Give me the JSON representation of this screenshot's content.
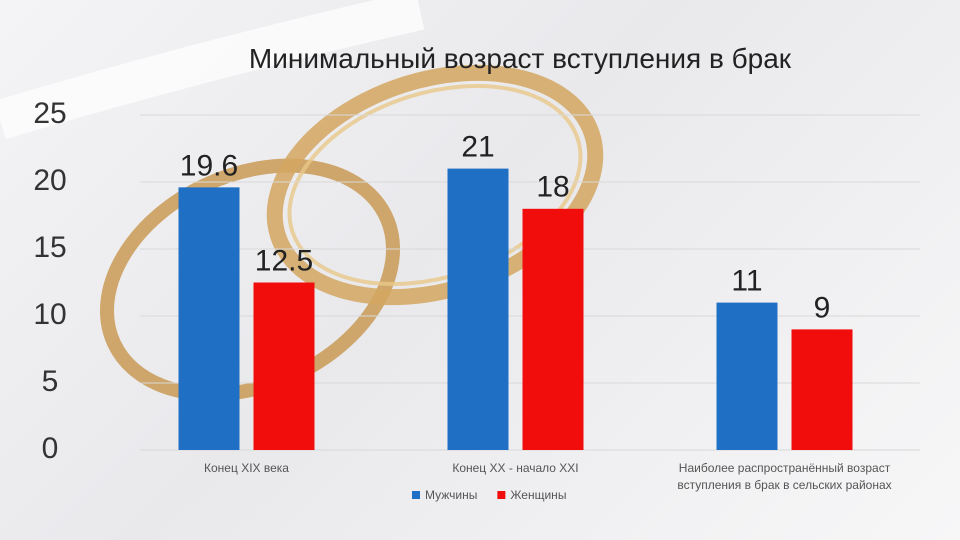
{
  "chart_data": {
    "type": "bar",
    "title": "Минимальный возраст вступления в брак",
    "categories": [
      "Конец XIX века",
      "Конец XX - начало XXI",
      "Наиболее распространённый возраст вступления в брак в сельских районах"
    ],
    "series": [
      {
        "name": "Мужчины",
        "color": "#1f6fc5",
        "values": [
          19.6,
          21,
          11
        ]
      },
      {
        "name": "Женщины",
        "color": "#f20d0d",
        "values": [
          12.5,
          18,
          9
        ]
      }
    ],
    "ylim": [
      0,
      25
    ],
    "yticks": [
      0,
      5,
      10,
      15,
      20,
      25
    ],
    "grid": true,
    "legend": "bottom"
  }
}
